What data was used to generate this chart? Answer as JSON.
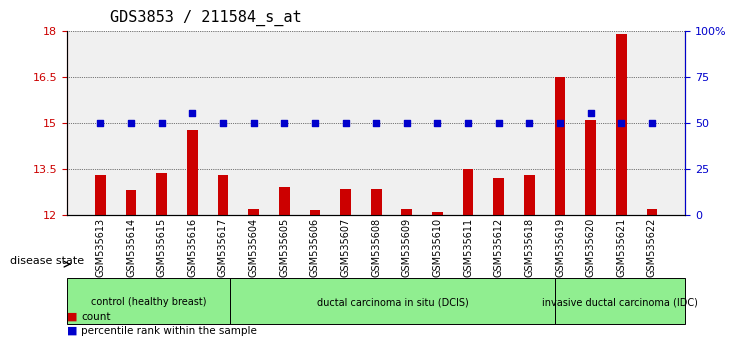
{
  "title": "GDS3853 / 211584_s_at",
  "samples": [
    "GSM535613",
    "GSM535614",
    "GSM535615",
    "GSM535616",
    "GSM535617",
    "GSM535604",
    "GSM535605",
    "GSM535606",
    "GSM535607",
    "GSM535608",
    "GSM535609",
    "GSM535610",
    "GSM535611",
    "GSM535612",
    "GSM535618",
    "GSM535619",
    "GSM535620",
    "GSM535621",
    "GSM535622"
  ],
  "counts": [
    13.3,
    12.8,
    13.35,
    14.75,
    13.3,
    12.2,
    12.9,
    12.15,
    12.85,
    12.85,
    12.2,
    12.1,
    13.5,
    13.2,
    13.3,
    16.5,
    15.1,
    17.9,
    12.2
  ],
  "percentiles": [
    50,
    50,
    50,
    55,
    50,
    50,
    50,
    50,
    50,
    50,
    50,
    50,
    50,
    50,
    50,
    50,
    55,
    50,
    50
  ],
  "groups": [
    {
      "label": "control (healthy breast)",
      "start": 0,
      "end": 5,
      "color": "#90EE90"
    },
    {
      "label": "ductal carcinoma in situ (DCIS)",
      "start": 5,
      "end": 15,
      "color": "#90EE90"
    },
    {
      "label": "invasive ductal carcinoma (IDC)",
      "start": 15,
      "end": 19,
      "color": "#90EE90"
    }
  ],
  "ylim_left": [
    12,
    18
  ],
  "ylim_right": [
    0,
    100
  ],
  "yticks_left": [
    12,
    13.5,
    15,
    16.5,
    18
  ],
  "yticks_right": [
    0,
    25,
    50,
    75,
    100
  ],
  "ytick_labels_right": [
    "0",
    "25",
    "50",
    "75",
    "100%"
  ],
  "bar_color": "#CC0000",
  "dot_color": "#0000CC",
  "bg_color": "#ffffff",
  "plot_bg": "#ffffff",
  "grid_color": "#000000",
  "title_fontsize": 11,
  "tick_fontsize": 7,
  "legend_fontsize": 8
}
